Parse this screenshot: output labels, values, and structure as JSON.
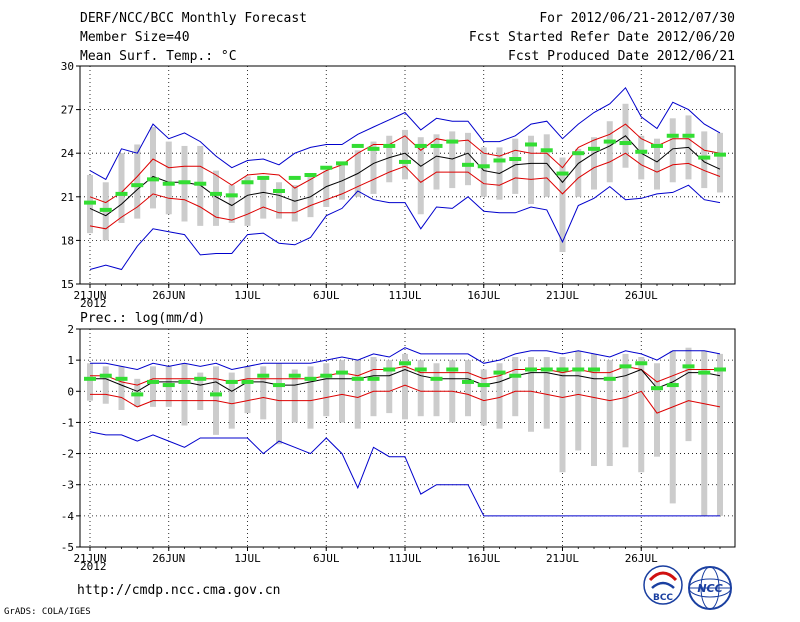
{
  "header": {
    "title": "DERF/NCC/BCC Monthly Forecast",
    "member_size": "Member Size=40",
    "variable": "Mean Surf. Temp.: °C",
    "forecast_period": "For 2012/06/21-2012/07/30",
    "started_refer_date": "Fcst Started Refer Date 2012/06/20",
    "produced_date": "Fcst Produced Date 2012/06/21"
  },
  "footer": {
    "url": "http://cmdp.ncc.cma.gov.cn",
    "credit": "GrADS: COLA/IGES",
    "logo_left_text": "BCC",
    "logo_right_text": "NCC"
  },
  "colors": {
    "max_min_lines": "#0000cc",
    "spread_lines": "#dd0000",
    "mean_line": "#000000",
    "observation_bars": "#33dd33",
    "range_bars": "#cccccc",
    "grid": "#000000"
  },
  "chart_data": [
    {
      "type": "line",
      "title": "Mean Surf. Temp.: °C",
      "xlabel": "",
      "ylabel": "°C",
      "x_tick_labels": [
        "21JUN",
        "26JUN",
        "1JUL",
        "6JUL",
        "11JUL",
        "16JUL",
        "21JUL",
        "26JUL"
      ],
      "x_tick_days": [
        0,
        5,
        10,
        15,
        20,
        25,
        30,
        35
      ],
      "year_label": "2012",
      "ylim": [
        15,
        30
      ],
      "y_ticks": [
        15,
        18,
        21,
        24,
        27,
        30
      ],
      "grid": true,
      "days": 40,
      "series": [
        {
          "name": "max",
          "color": "#0000cc",
          "values": [
            22.8,
            22.2,
            24.3,
            24.0,
            26.0,
            25.0,
            25.4,
            24.8,
            23.8,
            23.0,
            23.5,
            23.6,
            23.2,
            24.0,
            24.4,
            24.6,
            24.6,
            25.3,
            25.8,
            26.3,
            26.8,
            25.6,
            26.4,
            26.2,
            26.2,
            24.8,
            24.8,
            25.2,
            26.0,
            26.2,
            25.0,
            26.0,
            26.8,
            27.4,
            28.5,
            26.5,
            25.7,
            27.5,
            27.0,
            26.0,
            25.4
          ]
        },
        {
          "name": "upper-spread",
          "color": "#dd0000",
          "values": [
            21.0,
            20.6,
            21.3,
            22.4,
            23.6,
            23.0,
            23.1,
            23.1,
            22.5,
            21.8,
            22.5,
            22.6,
            22.5,
            21.6,
            22.2,
            22.8,
            23.2,
            24.0,
            24.6,
            24.6,
            25.2,
            24.2,
            25.0,
            24.8,
            24.9,
            24.0,
            23.8,
            24.2,
            24.0,
            24.0,
            23.0,
            24.4,
            24.9,
            25.3,
            26.0,
            25.0,
            24.5,
            25.0,
            25.0,
            24.2,
            24.0
          ]
        },
        {
          "name": "mean",
          "color": "#000000",
          "values": [
            20.2,
            19.7,
            20.5,
            21.5,
            22.4,
            22.0,
            22.0,
            21.8,
            21.0,
            20.4,
            21.1,
            21.3,
            21.1,
            20.7,
            21.0,
            21.7,
            22.1,
            22.6,
            23.3,
            23.7,
            24.0,
            23.1,
            23.8,
            23.6,
            24.0,
            22.8,
            22.6,
            23.2,
            23.3,
            23.3,
            22.0,
            23.3,
            24.0,
            24.5,
            25.2,
            24.0,
            23.4,
            24.3,
            24.4,
            23.4,
            22.9
          ]
        },
        {
          "name": "lower-spread",
          "color": "#dd0000",
          "values": [
            19.0,
            18.8,
            19.6,
            20.3,
            21.2,
            20.9,
            20.8,
            20.3,
            19.6,
            19.4,
            19.8,
            20.3,
            19.9,
            19.9,
            20.4,
            20.8,
            21.2,
            21.7,
            22.2,
            22.7,
            23.1,
            22.0,
            22.7,
            22.7,
            22.7,
            21.9,
            21.8,
            22.3,
            22.2,
            22.3,
            21.2,
            22.3,
            23.0,
            23.4,
            24.0,
            23.2,
            22.7,
            23.2,
            23.3,
            22.8,
            22.4
          ]
        },
        {
          "name": "min",
          "color": "#0000cc",
          "values": [
            16.0,
            16.3,
            16.0,
            17.6,
            18.8,
            18.6,
            18.4,
            17.0,
            17.1,
            17.1,
            18.4,
            18.5,
            17.8,
            17.7,
            18.2,
            19.7,
            20.2,
            21.4,
            20.8,
            20.6,
            20.6,
            18.8,
            20.3,
            20.2,
            21.0,
            20.0,
            19.9,
            19.9,
            20.3,
            20.1,
            17.9,
            20.4,
            20.9,
            21.7,
            20.8,
            20.9,
            21.2,
            21.3,
            21.8,
            20.8,
            20.6
          ]
        }
      ],
      "range_bars": {
        "name": "ensemble range",
        "color": "#cccccc",
        "low": [
          18.5,
          18.0,
          19.2,
          19.5,
          20.2,
          19.8,
          19.3,
          19.0,
          19.0,
          19.2,
          19.0,
          19.5,
          19.5,
          19.3,
          19.6,
          20.3,
          20.8,
          21.0,
          21.2,
          22.0,
          22.2,
          19.8,
          21.5,
          21.6,
          21.8,
          21.0,
          20.8,
          21.2,
          20.5,
          21.0,
          17.2,
          21.0,
          21.5,
          22.0,
          23.0,
          22.2,
          21.5,
          22.0,
          22.2,
          21.6,
          21.3
        ],
        "high": [
          22.5,
          22.0,
          24.0,
          24.6,
          25.8,
          24.8,
          24.5,
          24.5,
          22.8,
          21.8,
          22.4,
          22.2,
          22.0,
          21.8,
          22.4,
          22.8,
          23.2,
          24.2,
          24.8,
          25.2,
          25.6,
          25.1,
          25.3,
          25.5,
          25.4,
          24.4,
          24.4,
          25.0,
          25.2,
          25.3,
          23.7,
          24.3,
          25.1,
          26.2,
          27.4,
          25.2,
          25.0,
          26.4,
          26.6,
          25.5,
          25.4
        ]
      },
      "observation_bars": {
        "name": "observation",
        "color": "#33dd33",
        "values": [
          20.6,
          20.1,
          21.2,
          21.8,
          22.2,
          21.9,
          22.0,
          21.9,
          21.2,
          21.1,
          22.0,
          22.3,
          21.4,
          22.3,
          22.5,
          23.0,
          23.3,
          24.5,
          24.3,
          24.5,
          23.4,
          24.5,
          24.5,
          24.8,
          23.2,
          23.1,
          23.5,
          23.6,
          24.6,
          24.2,
          22.6,
          24.0,
          24.3,
          24.8,
          24.7,
          24.1,
          24.5,
          25.2,
          25.2,
          23.7,
          23.9
        ]
      }
    },
    {
      "type": "line",
      "title": "Prec.: log(mm/d)",
      "xlabel": "",
      "ylabel": "log(mm/d)",
      "x_tick_labels": [
        "21JUN",
        "26JUN",
        "1JUL",
        "6JUL",
        "11JUL",
        "16JUL",
        "21JUL",
        "26JUL"
      ],
      "x_tick_days": [
        0,
        5,
        10,
        15,
        20,
        25,
        30,
        35
      ],
      "year_label": "2012",
      "ylim": [
        -5,
        2
      ],
      "y_ticks": [
        -5,
        -4,
        -3,
        -2,
        -1,
        0,
        1,
        2
      ],
      "grid": true,
      "days": 40,
      "series": [
        {
          "name": "max",
          "color": "#0000cc",
          "values": [
            0.9,
            0.9,
            0.8,
            0.7,
            0.9,
            0.8,
            0.9,
            0.8,
            0.9,
            0.7,
            0.8,
            0.9,
            0.9,
            0.9,
            0.9,
            1.0,
            1.1,
            1.0,
            1.2,
            1.1,
            1.4,
            1.2,
            1.2,
            1.2,
            1.2,
            0.9,
            1.0,
            1.2,
            1.3,
            1.3,
            1.2,
            1.3,
            1.2,
            1.1,
            1.3,
            1.2,
            1.0,
            1.3,
            1.3,
            1.3,
            1.2
          ]
        },
        {
          "name": "upper-spread",
          "color": "#dd0000",
          "values": [
            0.5,
            0.5,
            0.3,
            0.2,
            0.4,
            0.4,
            0.4,
            0.4,
            0.4,
            0.3,
            0.4,
            0.4,
            0.4,
            0.4,
            0.4,
            0.5,
            0.6,
            0.5,
            0.7,
            0.7,
            0.8,
            0.6,
            0.6,
            0.6,
            0.6,
            0.4,
            0.5,
            0.7,
            0.7,
            0.7,
            0.6,
            0.7,
            0.6,
            0.6,
            0.8,
            0.7,
            0.3,
            0.5,
            0.7,
            0.7,
            0.7
          ]
        },
        {
          "name": "mean",
          "color": "#000000",
          "values": [
            0.4,
            0.4,
            0.2,
            0.0,
            0.3,
            0.3,
            0.3,
            0.2,
            0.3,
            0.0,
            0.3,
            0.3,
            0.2,
            0.2,
            0.3,
            0.4,
            0.4,
            0.4,
            0.5,
            0.5,
            0.7,
            0.5,
            0.4,
            0.4,
            0.4,
            0.2,
            0.3,
            0.5,
            0.6,
            0.6,
            0.5,
            0.5,
            0.4,
            0.4,
            0.5,
            0.7,
            0.1,
            0.3,
            0.6,
            0.6,
            0.5
          ]
        },
        {
          "name": "lower-spread",
          "color": "#dd0000",
          "values": [
            -0.1,
            -0.1,
            -0.2,
            -0.5,
            -0.3,
            -0.3,
            -0.3,
            -0.3,
            -0.3,
            -0.4,
            -0.3,
            -0.2,
            -0.3,
            -0.3,
            -0.3,
            -0.2,
            -0.1,
            -0.2,
            0.0,
            0.0,
            0.2,
            0.0,
            0.0,
            0.0,
            -0.1,
            -0.3,
            -0.2,
            0.0,
            0.0,
            -0.1,
            -0.2,
            -0.1,
            -0.2,
            -0.3,
            -0.2,
            0.0,
            -0.7,
            -0.5,
            -0.3,
            -0.4,
            -0.5
          ]
        },
        {
          "name": "min",
          "color": "#0000cc",
          "values": [
            -1.3,
            -1.4,
            -1.4,
            -1.6,
            -1.4,
            -1.6,
            -1.8,
            -1.5,
            -1.5,
            -1.5,
            -1.5,
            -2.0,
            -1.6,
            -1.8,
            -2.0,
            -1.5,
            -2.0,
            -3.1,
            -1.8,
            -2.1,
            -2.1,
            -3.3,
            -3.0,
            -3.0,
            -3.0,
            -4.0,
            -4.0,
            -4.0,
            -4.0,
            -4.0,
            -4.0,
            -4.0,
            -4.0,
            -4.0,
            -4.0,
            -4.0,
            -4.0,
            -4.0,
            -4.0,
            -4.0,
            -4.0
          ]
        }
      ],
      "range_bars": {
        "name": "ensemble range",
        "color": "#cccccc",
        "low": [
          -0.3,
          -0.4,
          -0.6,
          -0.5,
          -0.5,
          -0.5,
          -1.1,
          -0.6,
          -1.4,
          -1.2,
          -0.7,
          -0.9,
          -1.7,
          -1.0,
          -1.2,
          -0.8,
          -1.0,
          -1.2,
          -0.8,
          -0.7,
          -0.9,
          -0.8,
          -0.8,
          -1.0,
          -0.8,
          -1.1,
          -1.2,
          -0.8,
          -1.3,
          -1.2,
          -2.6,
          -1.9,
          -2.4,
          -2.4,
          -1.8,
          -2.6,
          -2.1,
          -3.6,
          -1.6,
          -4.0,
          -4.0
        ],
        "high": [
          0.9,
          0.8,
          0.8,
          0.4,
          0.8,
          0.8,
          0.9,
          0.6,
          0.8,
          0.6,
          0.8,
          0.8,
          0.9,
          0.7,
          0.8,
          0.9,
          1.0,
          1.0,
          1.1,
          1.0,
          1.2,
          1.0,
          0.9,
          1.0,
          1.0,
          0.7,
          0.9,
          1.1,
          1.1,
          1.1,
          1.1,
          1.3,
          1.2,
          1.0,
          1.2,
          1.1,
          0.9,
          1.3,
          1.4,
          1.3,
          1.2
        ]
      },
      "observation_bars": {
        "name": "observation",
        "color": "#33dd33",
        "values": [
          0.4,
          0.5,
          0.4,
          -0.1,
          0.3,
          0.2,
          0.3,
          0.4,
          -0.1,
          0.3,
          0.3,
          0.5,
          0.2,
          0.5,
          0.4,
          0.5,
          0.6,
          0.4,
          0.4,
          0.7,
          0.9,
          0.7,
          0.4,
          0.7,
          0.3,
          0.2,
          0.6,
          0.5,
          0.7,
          0.7,
          0.7,
          0.7,
          0.7,
          0.4,
          0.8,
          0.9,
          0.1,
          0.2,
          0.8,
          0.6,
          0.7
        ]
      }
    }
  ]
}
